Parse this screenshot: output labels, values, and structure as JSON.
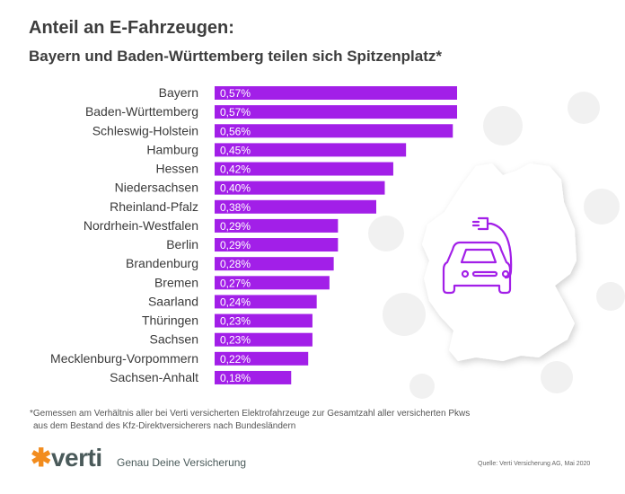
{
  "header": {
    "title": "Anteil an E-Fahrzeugen:",
    "subtitle": "Bayern und Baden-Württemberg teilen sich Spitzenplatz*"
  },
  "chart_data": {
    "type": "bar",
    "orientation": "horizontal",
    "title": "Anteil an E-Fahrzeugen:",
    "subtitle": "Bayern und Baden-Württemberg teilen sich Spitzenplatz*",
    "categories": [
      "Bayern",
      "Baden-Württemberg",
      "Schleswig-Holstein",
      "Hamburg",
      "Hessen",
      "Niedersachsen",
      "Rheinland-Pfalz",
      "Nordrhein-Westfalen",
      "Berlin",
      "Brandenburg",
      "Bremen",
      "Saarland",
      "Thüringen",
      "Sachsen",
      "Mecklenburg-Vorpommern",
      "Sachsen-Anhalt"
    ],
    "values": [
      0.57,
      0.57,
      0.56,
      0.45,
      0.42,
      0.4,
      0.38,
      0.29,
      0.29,
      0.28,
      0.27,
      0.24,
      0.23,
      0.23,
      0.22,
      0.18
    ],
    "data_labels": [
      "0,57%",
      "0,57%",
      "0,56%",
      "0,45%",
      "0,42%",
      "0,40%",
      "0,38%",
      "0,29%",
      "0,29%",
      "0,28%",
      "0,27%",
      "0,24%",
      "0,23%",
      "0,23%",
      "0,22%",
      "0,18%"
    ],
    "unit": "%",
    "bar_color": "#a21fe8",
    "grid": false,
    "legend": "none"
  },
  "icon": "electric-car-plug-icon",
  "footnote": {
    "line1": "*Gemessen am Verhältnis aller bei Verti versicherten Elektrofahrzeuge zur Gesamtzahl aller versicherten Pkws",
    "line2": "aus dem Bestand des Kfz-Direktversicherers nach Bundesländern"
  },
  "footer": {
    "logo": "verti",
    "slogan": "Genau Deine Versicherung",
    "source": "Quelle: Verti Versicherung AG, Mai 2020"
  },
  "colors": {
    "accent": "#a21fe8",
    "logo_orange": "#f28c1e",
    "text": "#3d3d3d"
  }
}
